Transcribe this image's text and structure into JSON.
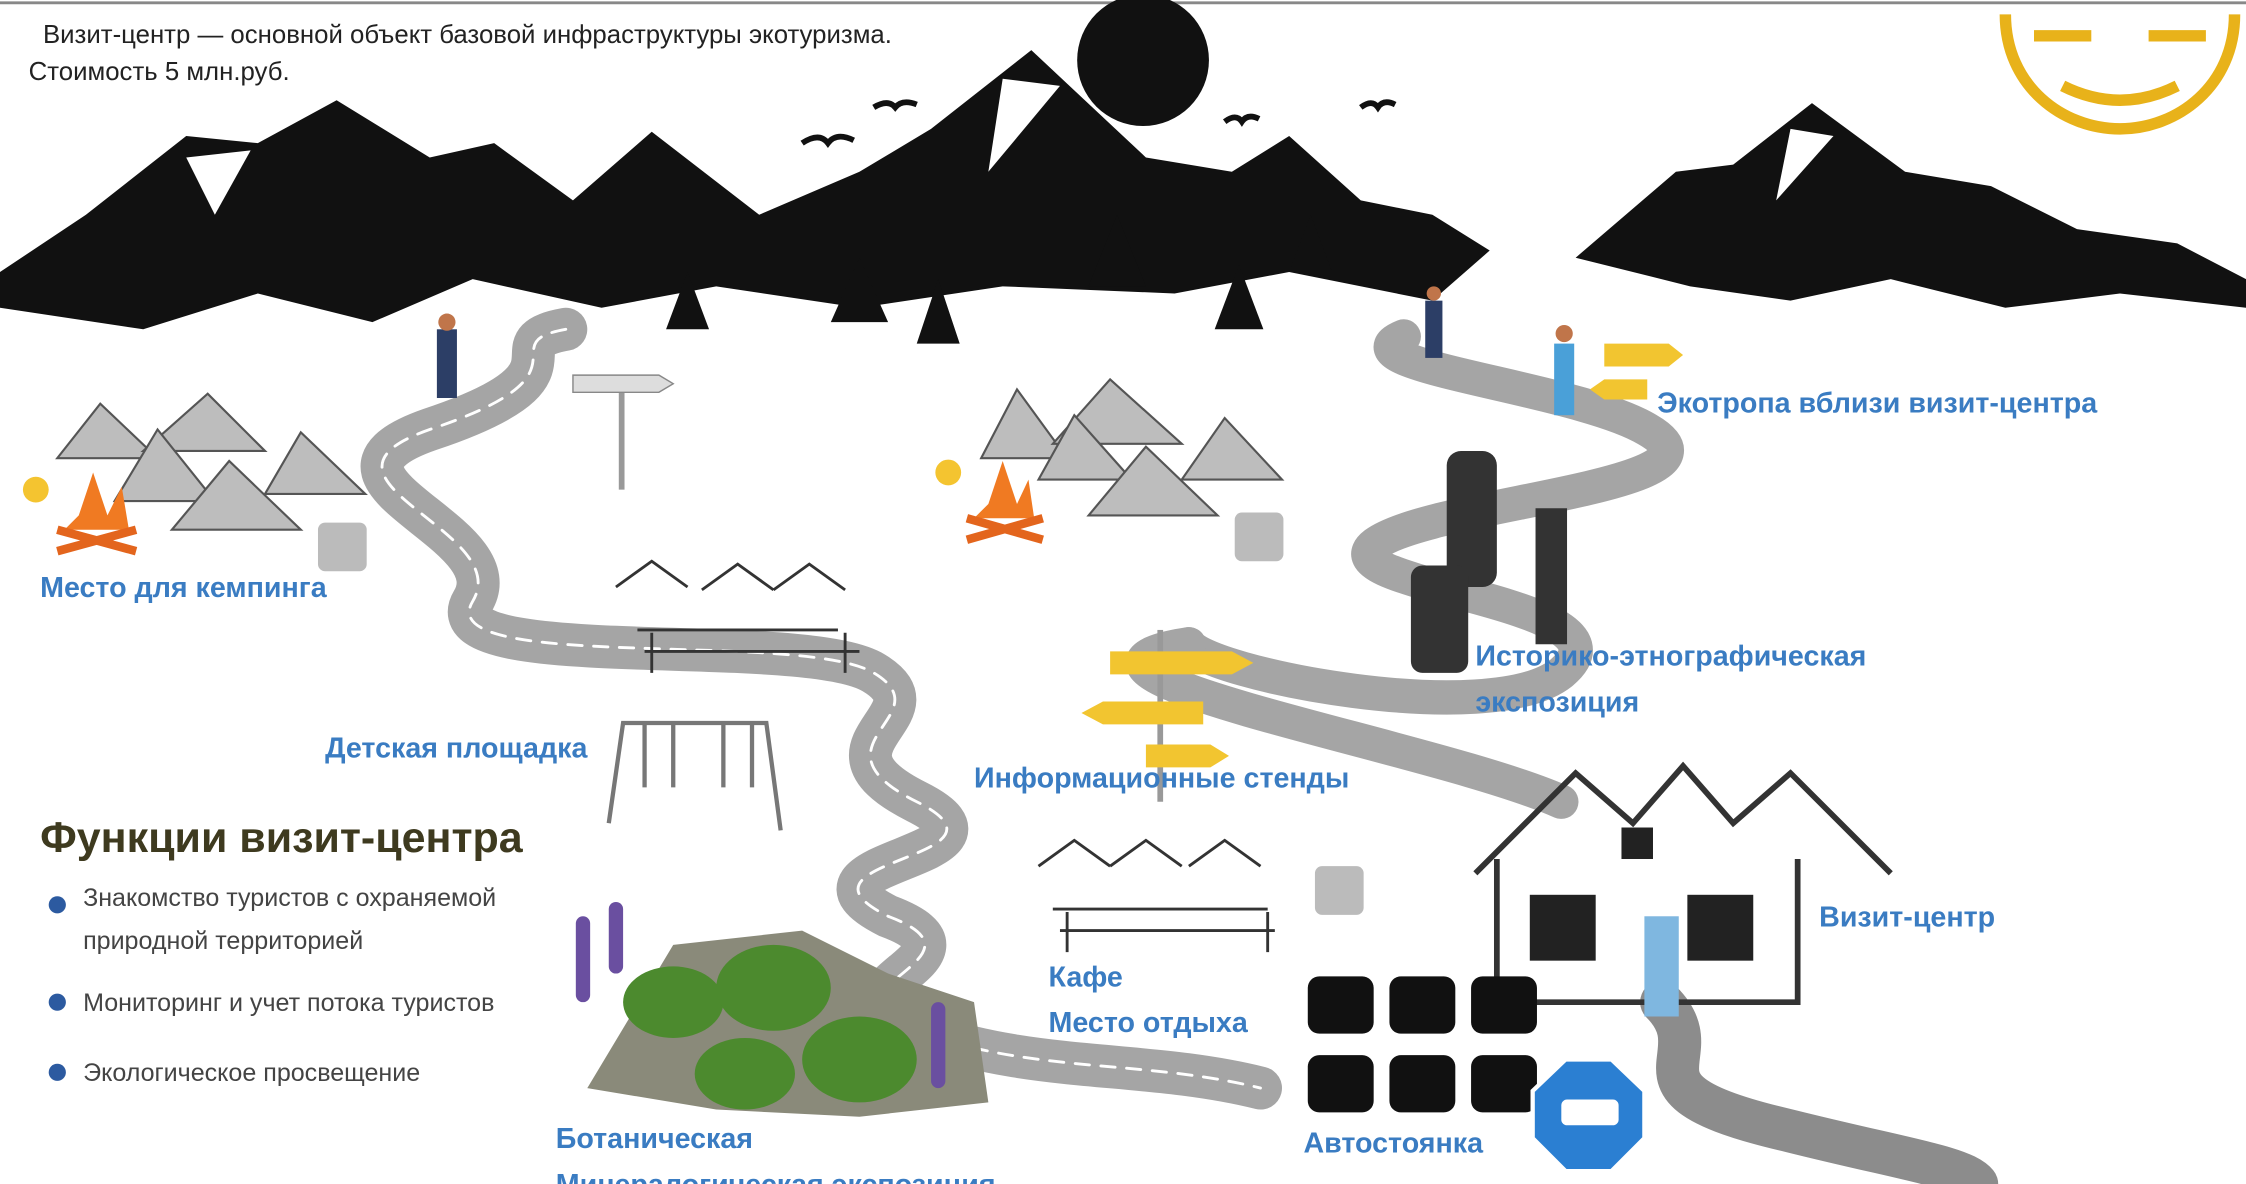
{
  "header": {
    "line1": "Визит-центр — основной объект базовой инфраструктуры экотуризма.",
    "line2": "Стоимость  5 млн.руб."
  },
  "labels": {
    "ecotrail": "Экотропа вблизи визит-центра",
    "camping": "Место для кемпинга",
    "ethno": [
      "Историко-этнографическая",
      "экспозиция"
    ],
    "playground": "Детская площадка",
    "stands": "Информационные стенды",
    "center": "Визит-центр",
    "cafe": "Кафе",
    "rest": "Место отдыха",
    "botanical": "Ботаническая",
    "mineral": "Минералогическая экспозиция",
    "parking": "Автостоянка"
  },
  "functions": {
    "title": "Функции визит-центра",
    "items": [
      [
        "Знакомство туристов с охраняемой",
        "природной территорией"
      ],
      [
        "Мониторинг и учет потока туристов"
      ],
      [
        "Экологическое просвещение"
      ]
    ]
  }
}
